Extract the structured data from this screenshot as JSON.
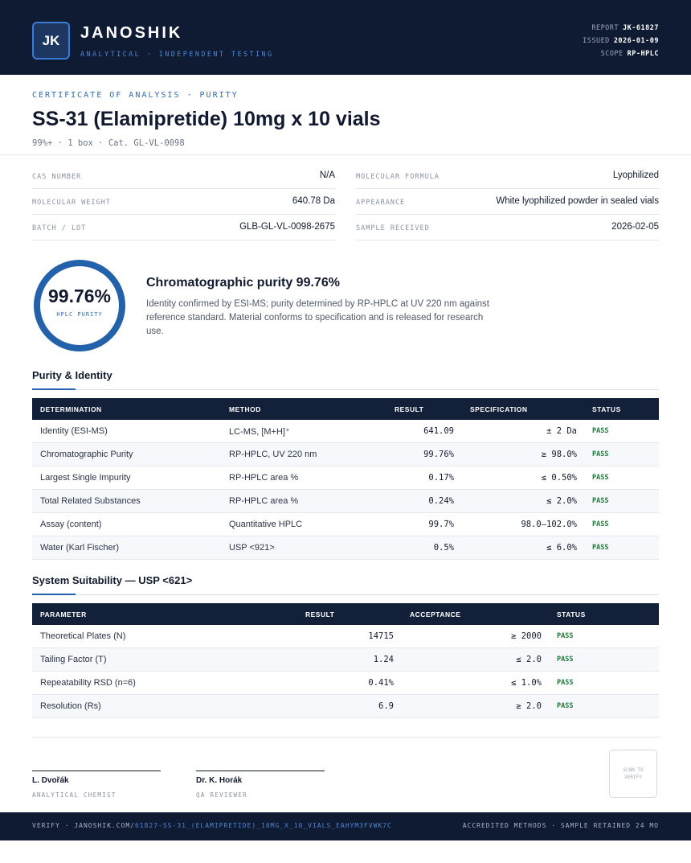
{
  "header": {
    "logo": "JK",
    "brand": "JANOSHIK",
    "tagline": "ANALYTICAL · INDEPENDENT TESTING",
    "meta": [
      {
        "label": "REPORT",
        "value": "JK-61827"
      },
      {
        "label": "ISSUED",
        "value": "2026-01-09"
      },
      {
        "label": "SCOPE",
        "value": "RP-HPLC"
      }
    ]
  },
  "certificate": {
    "kicker": "CERTIFICATE OF ANALYSIS · PURITY",
    "title": "SS-31 (Elamipretide) 10mg x 10 vials",
    "subtitle": "99%+ · 1 box · Cat. GL-VL-0098"
  },
  "properties": [
    [
      "CAS NUMBER",
      "N/A"
    ],
    [
      "MOLECULAR FORMULA",
      "Lyophilized"
    ],
    [
      "MOLECULAR WEIGHT",
      "640.78 Da"
    ],
    [
      "APPEARANCE",
      "White lyophilized powder in sealed vials"
    ],
    [
      "BATCH / LOT",
      "GLB-GL-VL-0098-2675"
    ],
    [
      "SAMPLE RECEIVED",
      "2026-02-05"
    ]
  ],
  "summary": {
    "purity": "99.76%",
    "purity_label": "HPLC PURITY",
    "heading": "Chromatographic purity 99.76%",
    "text": "Identity confirmed by ESI-MS; purity determined by RP-HPLC at UV 220 nm against reference standard. Material conforms to specification and is released for research use."
  },
  "purity_table": {
    "title": "Purity & Identity",
    "headers": [
      "DETERMINATION",
      "METHOD",
      "RESULT",
      "SPECIFICATION",
      "STATUS"
    ],
    "rows": [
      [
        "Identity (ESI-MS)",
        "LC-MS, [M+H]⁺",
        "641.09",
        "± 2 Da",
        "PASS"
      ],
      [
        "Chromatographic Purity",
        "RP-HPLC, UV 220 nm",
        "99.76%",
        "≥ 98.0%",
        "PASS"
      ],
      [
        "Largest Single Impurity",
        "RP-HPLC area %",
        "0.17%",
        "≤ 0.50%",
        "PASS"
      ],
      [
        "Total Related Substances",
        "RP-HPLC area %",
        "0.24%",
        "≤ 2.0%",
        "PASS"
      ],
      [
        "Assay (content)",
        "Quantitative HPLC",
        "99.7%",
        "98.0–102.0%",
        "PASS"
      ],
      [
        "Water (Karl Fischer)",
        "USP <921>",
        "0.5%",
        "≤ 6.0%",
        "PASS"
      ]
    ]
  },
  "suitability_table": {
    "title": "System Suitability — USP <621>",
    "headers": [
      "PARAMETER",
      "RESULT",
      "ACCEPTANCE",
      "STATUS"
    ],
    "rows": [
      [
        "Theoretical Plates (N)",
        "14715",
        "≥ 2000",
        "PASS"
      ],
      [
        "Tailing Factor (T)",
        "1.24",
        "≤ 2.0",
        "PASS"
      ],
      [
        "Repeatability RSD (n=6)",
        "0.41%",
        "≤ 1.0%",
        "PASS"
      ],
      [
        "Resolution (Rs)",
        "6.9",
        "≥ 2.0",
        "PASS"
      ]
    ]
  },
  "signatures": [
    {
      "name": "L. Dvořák",
      "role": "ANALYTICAL CHEMIST"
    },
    {
      "name": "Dr. K. Horák",
      "role": "QA REVIEWER"
    }
  ],
  "stamp": "SCAN TO VERIFY",
  "footer": {
    "verify": "VERIFY · JANOSHIK.COM/",
    "link": "61827-SS-31_(ELAMIPRETIDE)_10MG_X_10_VIALS_EAHYM3FVWK7C",
    "right": "ACCREDITED METHODS · SAMPLE RETAINED 24 MO"
  }
}
